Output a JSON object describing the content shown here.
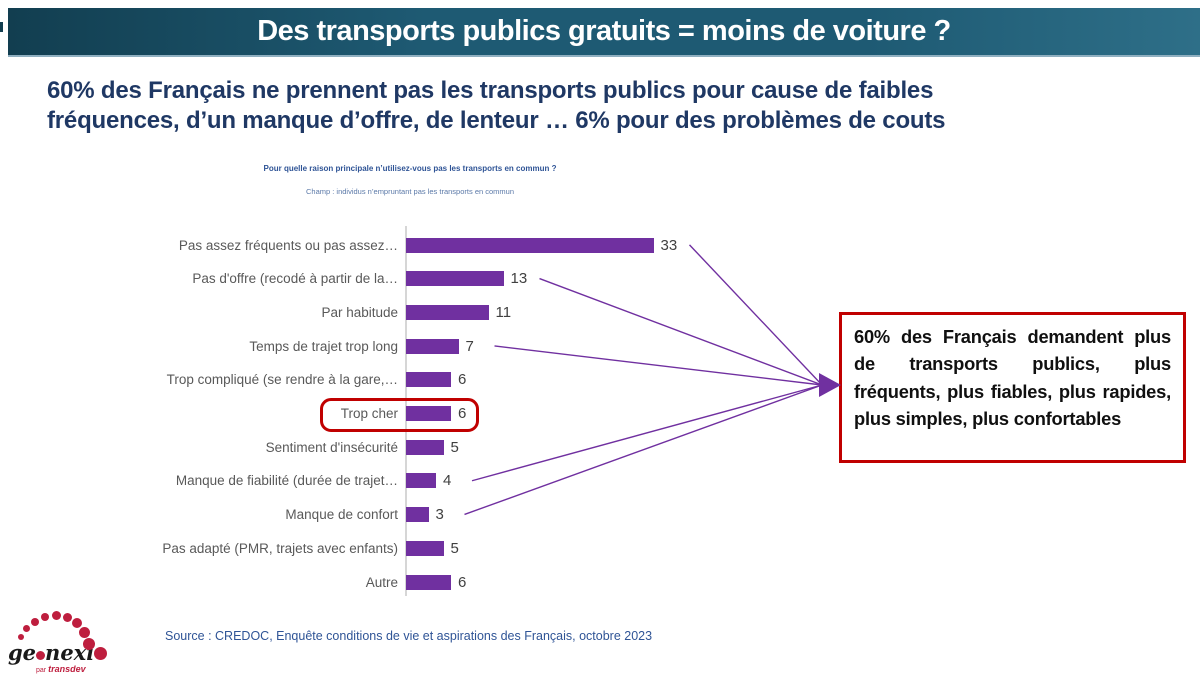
{
  "header": {
    "title": "Des transports publics gratuits = moins de voiture ?"
  },
  "headline": {
    "line1": "60% des Français ne prennent pas les transports publics pour cause de faibles",
    "line2": "fréquences, d’un manque d’offre, de lenteur … 6% pour des problèmes de couts"
  },
  "chart": {
    "title": "Pour quelle raison principale n’utilisez-vous pas les transports en commun ?",
    "champ": "Champ : individus n’empruntant pas les transports en commun"
  },
  "chart_data": {
    "type": "bar",
    "orientation": "horizontal",
    "title": "Pour quelle raison principale n’utilisez-vous pas les transports en commun ?",
    "categories": [
      "Pas assez fréquents ou pas assez…",
      "Pas d'offre (recodé à partir de la…",
      "Par habitude",
      "Temps de trajet trop long",
      "Trop compliqué (se rendre à la gare,…",
      "Trop cher",
      "Sentiment d'insécurité",
      "Manque de fiabilité (durée de trajet…",
      "Manque de confort",
      "Pas adapté (PMR, trajets avec enfants)",
      "Autre"
    ],
    "values": [
      33,
      13,
      11,
      7,
      6,
      6,
      5,
      4,
      3,
      5,
      6
    ],
    "xlim": [
      0,
      35
    ],
    "grid": false,
    "legend": false,
    "bar_color": "#7030A0",
    "highlighted_index": 5,
    "connector_indices": [
      0,
      1,
      3,
      7,
      8
    ]
  },
  "callout": {
    "text": "60% des Français demandent plus de transports publics, plus fréquents, plus fiables, plus rapides, plus simples, plus confortables"
  },
  "source": "Source : CREDOC, Enquête conditions de vie et aspirations des Français, octobre 2023",
  "logo": {
    "part1": "ge",
    "part2": "nexi",
    "tagline_prefix": "par",
    "tagline_brand": "transdev"
  },
  "colors": {
    "accent_purple": "#7030A0",
    "alert_red": "#C00000",
    "headline_navy": "#1F3864",
    "chart_title_blue": "#2F5496",
    "champ_blue": "#5B79A8",
    "source_blue": "#2F5496",
    "category_grey": "#595959",
    "value_grey": "#404040",
    "band_teal_dark": "#123E50",
    "band_teal_mid": "#1E5A73",
    "band_teal_light": "#2E6F88",
    "band_border": "#8FAFC0",
    "logo_red": "#BE1E3E",
    "logo_ink": "#1A1A1A"
  }
}
